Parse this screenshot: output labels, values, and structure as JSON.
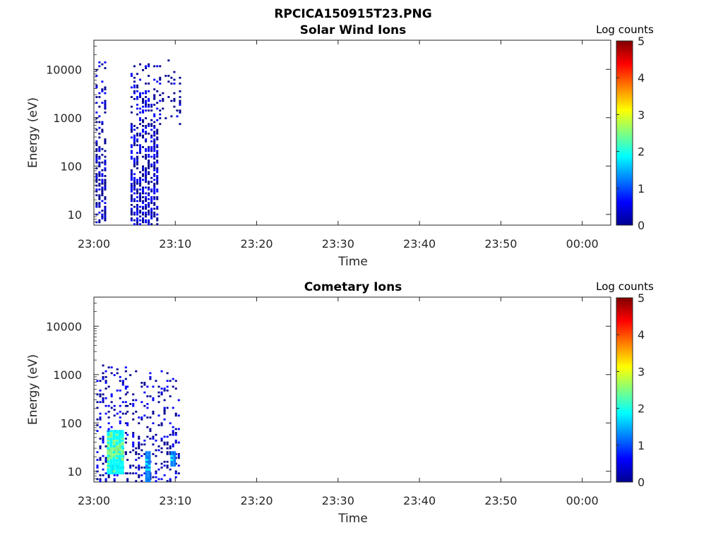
{
  "figure_title": "RPCICA150915T23.PNG",
  "colors": {
    "axis": "#262626",
    "colormap": [
      "#00008f",
      "#0000ff",
      "#0080ff",
      "#00ffff",
      "#80ff80",
      "#ffff00",
      "#ff8000",
      "#ff0000",
      "#800000"
    ]
  },
  "chart_data": [
    {
      "type": "heatmap",
      "title": "Solar Wind Ions",
      "xlabel": "Time",
      "ylabel": "Energy (eV)",
      "x_ticks": [
        "23:00",
        "23:10",
        "23:20",
        "23:30",
        "23:40",
        "23:50",
        "00:00"
      ],
      "x_range_minutes": [
        0,
        63.5
      ],
      "y_scale": "log",
      "y_ticks": [
        "10",
        "100",
        "1000",
        "10000"
      ],
      "ylim": [
        6,
        40000
      ],
      "colorbar": {
        "label": "Log counts",
        "range": [
          0,
          5
        ],
        "ticks": [
          "0",
          "1",
          "2",
          "3",
          "4",
          "5"
        ]
      },
      "grid": false,
      "bursts": [
        {
          "t_start": 0.2,
          "t_end": 1.3,
          "e_min": 6,
          "e_max": 15000,
          "density": 0.55,
          "max_level": 0.5
        },
        {
          "t_start": 4.5,
          "t_end": 7.8,
          "e_min": 6,
          "e_max": 14000,
          "density": 0.6,
          "max_level": 0.6
        },
        {
          "t_start": 8.0,
          "t_end": 10.6,
          "e_min": 700,
          "e_max": 15000,
          "density": 0.2,
          "max_level": 0.4
        }
      ]
    },
    {
      "type": "heatmap",
      "title": "Cometary Ions",
      "xlabel": "Time",
      "ylabel": "Energy (eV)",
      "x_ticks": [
        "23:00",
        "23:10",
        "23:20",
        "23:30",
        "23:40",
        "23:50",
        "00:00"
      ],
      "x_range_minutes": [
        0,
        63.5
      ],
      "y_scale": "log",
      "y_ticks": [
        "10",
        "100",
        "1000",
        "10000"
      ],
      "ylim": [
        6,
        40000
      ],
      "colorbar": {
        "label": "Log counts",
        "range": [
          0,
          5
        ],
        "ticks": [
          "0",
          "1",
          "2",
          "3",
          "4",
          "5"
        ]
      },
      "grid": false,
      "bursts": [
        {
          "t_start": 0.3,
          "t_end": 4.0,
          "e_min": 6,
          "e_max": 1800,
          "density": 0.3,
          "max_level": 0.5
        },
        {
          "t_start": 4.0,
          "t_end": 10.6,
          "e_min": 6,
          "e_max": 1200,
          "density": 0.25,
          "max_level": 0.5
        }
      ],
      "hotspots": [
        {
          "t_start": 1.6,
          "t_end": 3.6,
          "e_min": 8,
          "e_max": 70,
          "level": 2.8
        },
        {
          "t_start": 6.3,
          "t_end": 6.7,
          "e_min": 6,
          "e_max": 25,
          "level": 1.8
        },
        {
          "t_start": 9.4,
          "t_end": 10.1,
          "e_min": 12,
          "e_max": 25,
          "level": 1.7
        }
      ]
    }
  ]
}
